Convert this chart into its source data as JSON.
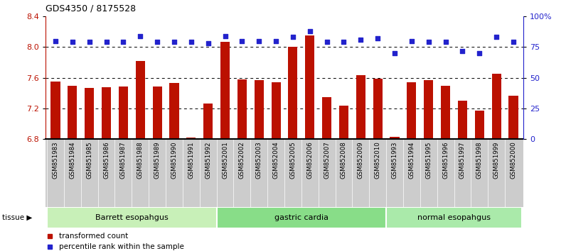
{
  "title": "GDS4350 / 8175528",
  "samples": [
    "GSM851983",
    "GSM851984",
    "GSM851985",
    "GSM851986",
    "GSM851987",
    "GSM851988",
    "GSM851989",
    "GSM851990",
    "GSM851991",
    "GSM851992",
    "GSM852001",
    "GSM852002",
    "GSM852003",
    "GSM852004",
    "GSM852005",
    "GSM852006",
    "GSM852007",
    "GSM852008",
    "GSM852009",
    "GSM852010",
    "GSM851993",
    "GSM851994",
    "GSM851995",
    "GSM851996",
    "GSM851997",
    "GSM851998",
    "GSM851999",
    "GSM852000"
  ],
  "bar_values": [
    7.55,
    7.5,
    7.47,
    7.48,
    7.49,
    7.82,
    7.49,
    7.53,
    6.82,
    7.27,
    8.07,
    7.58,
    7.57,
    7.54,
    8.0,
    8.15,
    7.35,
    7.24,
    7.63,
    7.59,
    6.83,
    7.54,
    7.57,
    7.5,
    7.3,
    7.17,
    7.65,
    7.37
  ],
  "dot_values": [
    80,
    79,
    79,
    79,
    79,
    84,
    79,
    79,
    79,
    78,
    84,
    80,
    80,
    80,
    83,
    88,
    79,
    79,
    81,
    82,
    70,
    80,
    79,
    79,
    72,
    70,
    83,
    79
  ],
  "groups": [
    {
      "label": "Barrett esopahgus",
      "start": 0,
      "end": 10,
      "color": "#c8f0b8"
    },
    {
      "label": "gastric cardia",
      "start": 10,
      "end": 20,
      "color": "#88dd88"
    },
    {
      "label": "normal esopahgus",
      "start": 20,
      "end": 28,
      "color": "#aaeaaa"
    }
  ],
  "bar_color": "#bb1100",
  "dot_color": "#2222cc",
  "bar_bottom": 6.8,
  "ylim_left": [
    6.8,
    8.4
  ],
  "ylim_right": [
    0,
    100
  ],
  "yticks_left": [
    6.8,
    7.2,
    7.6,
    8.0,
    8.4
  ],
  "yticks_right": [
    0,
    25,
    50,
    75,
    100
  ],
  "ytick_labels_right": [
    "0",
    "25",
    "50",
    "75",
    "100%"
  ],
  "grid_values": [
    8.0,
    7.6,
    7.2
  ],
  "xtick_bg": "#cccccc",
  "fig_bg": "white"
}
